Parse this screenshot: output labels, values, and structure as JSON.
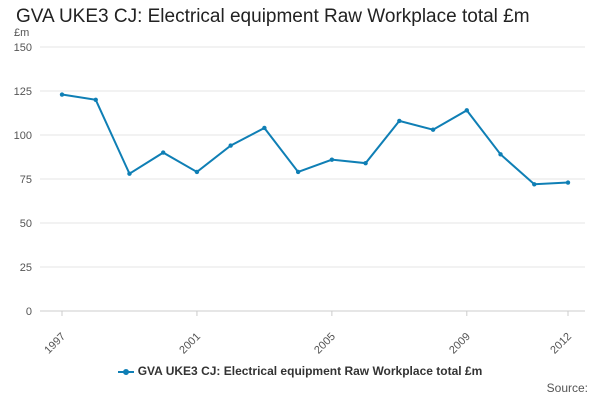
{
  "title": "GVA UKE3 CJ: Electrical equipment Raw Workplace total £m",
  "source_label": "Source:",
  "colors": {
    "series": "#0f7fb5"
  },
  "chart_data": {
    "type": "line",
    "title": "GVA UKE3 CJ: Electrical equipment Raw Workplace total £m",
    "ylabel": "£m",
    "xlabel": "",
    "ylim": [
      0,
      150
    ],
    "yticks": [
      0,
      25,
      50,
      75,
      100,
      125,
      150
    ],
    "xticks": [
      1997,
      2001,
      2005,
      2009,
      2012
    ],
    "grid": true,
    "legend_position": "bottom",
    "x": [
      1997,
      1998,
      1999,
      2000,
      2001,
      2002,
      2003,
      2004,
      2005,
      2006,
      2007,
      2008,
      2009,
      2010,
      2011,
      2012
    ],
    "series": [
      {
        "name": "GVA UKE3 CJ: Electrical equipment Raw Workplace total £m",
        "values": [
          123,
          120,
          78,
          90,
          79,
          94,
          104,
          79,
          86,
          84,
          108,
          103,
          114,
          89,
          72,
          73
        ]
      }
    ]
  }
}
